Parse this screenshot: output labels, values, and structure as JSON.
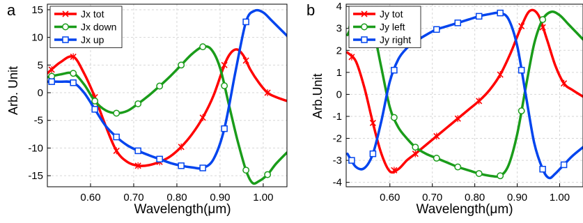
{
  "panels": [
    {
      "label": "a",
      "chart_data": {
        "type": "line",
        "xlabel": "Wavelength(μm)",
        "ylabel": "Arb. Unit",
        "xlim": [
          0.5,
          1.055
        ],
        "ylim": [
          -17,
          16
        ],
        "xticks": [
          0.6,
          0.7,
          0.8,
          0.9,
          1.0
        ],
        "xtick_labels": [
          "0.60",
          "0.70",
          "0.80",
          "0.90",
          "1.00"
        ],
        "yticks": [
          -15,
          -10,
          -5,
          0,
          5,
          10,
          15
        ],
        "ytick_labels": [
          "-15",
          "-10",
          "-5",
          "0",
          "5",
          "10",
          "15"
        ],
        "grid": true,
        "legend_position": "top-left",
        "series": [
          {
            "name": "Jx tot",
            "color": "#ff0000",
            "marker": "x",
            "x": [
              0.5,
              0.53,
              0.56,
              0.585,
              0.61,
              0.635,
              0.66,
              0.685,
              0.71,
              0.735,
              0.76,
              0.785,
              0.81,
              0.835,
              0.86,
              0.885,
              0.91,
              0.925,
              0.94,
              0.955,
              0.97,
              0.99,
              1.01,
              1.03,
              1.055
            ],
            "y": [
              3.5,
              5.5,
              6.5,
              3.5,
              -0.8,
              -6.0,
              -10.5,
              -12.5,
              -13.2,
              -13.1,
              -12.5,
              -11.5,
              -9.8,
              -7.5,
              -4.5,
              -0.5,
              5.0,
              7.2,
              7.8,
              6.6,
              4.2,
              1.8,
              0.0,
              -0.8,
              -1.5
            ],
            "marker_x": [
              0.51,
              0.56,
              0.61,
              0.66,
              0.71,
              0.76,
              0.81,
              0.86,
              0.91,
              0.96,
              1.01
            ]
          },
          {
            "name": "Jx down",
            "color": "#1a9c1a",
            "marker": "o",
            "x": [
              0.5,
              0.53,
              0.56,
              0.585,
              0.61,
              0.635,
              0.66,
              0.685,
              0.71,
              0.735,
              0.76,
              0.785,
              0.81,
              0.835,
              0.86,
              0.88,
              0.9,
              0.92,
              0.94,
              0.96,
              0.975,
              0.99,
              1.01,
              1.03,
              1.055
            ],
            "y": [
              2.8,
              3.3,
              3.5,
              1.5,
              -1.5,
              -3.2,
              -3.7,
              -3.3,
              -2.0,
              -0.5,
              1.2,
              3.0,
              5.0,
              7.0,
              8.3,
              7.8,
              4.5,
              -2.0,
              -8.5,
              -14.0,
              -16.3,
              -16.0,
              -14.8,
              -12.8,
              -10.8
            ],
            "marker_x": [
              0.51,
              0.56,
              0.61,
              0.66,
              0.71,
              0.76,
              0.81,
              0.86,
              0.91,
              0.96,
              1.01
            ]
          },
          {
            "name": "Jx up",
            "color": "#0044ee",
            "marker": "s",
            "x": [
              0.5,
              0.53,
              0.56,
              0.585,
              0.61,
              0.635,
              0.66,
              0.685,
              0.71,
              0.735,
              0.76,
              0.785,
              0.81,
              0.835,
              0.86,
              0.885,
              0.91,
              0.935,
              0.96,
              0.98,
              1.0,
              1.02,
              1.055
            ],
            "y": [
              2.0,
              2.0,
              1.8,
              0.0,
              -3.0,
              -6.0,
              -8.0,
              -9.5,
              -10.5,
              -11.3,
              -12.0,
              -12.7,
              -13.2,
              -13.5,
              -13.6,
              -12.0,
              -6.5,
              3.5,
              12.8,
              14.8,
              14.5,
              13.0,
              10.3
            ],
            "marker_x": [
              0.51,
              0.56,
              0.61,
              0.66,
              0.71,
              0.76,
              0.81,
              0.86,
              0.91,
              0.96
            ]
          }
        ]
      }
    },
    {
      "label": "b",
      "chart_data": {
        "type": "line",
        "xlabel": "Wavelength(μm)",
        "ylabel": "Arb.Unit",
        "xlim": [
          0.497,
          1.055
        ],
        "ylim": [
          -4.2,
          4.1
        ],
        "xticks": [
          0.6,
          0.7,
          0.8,
          0.9,
          1.0
        ],
        "xtick_labels": [
          "0.60",
          "0.70",
          "0.80",
          "0.90",
          "1.00"
        ],
        "yticks": [
          -4,
          -3,
          -2,
          -1,
          0,
          1,
          2,
          3,
          4
        ],
        "ytick_labels": [
          "-4",
          "-3",
          "-2",
          "-1",
          "0",
          "1",
          "2",
          "3",
          "4"
        ],
        "grid": true,
        "legend_position": "top-left",
        "series": [
          {
            "name": "Jy tot",
            "color": "#ff0000",
            "marker": "x",
            "x": [
              0.5,
              0.52,
              0.54,
              0.56,
              0.58,
              0.6,
              0.62,
              0.64,
              0.66,
              0.685,
              0.71,
              0.735,
              0.76,
              0.785,
              0.81,
              0.835,
              0.86,
              0.885,
              0.91,
              0.93,
              0.95,
              0.97,
              0.99,
              1.01,
              1.03,
              1.055
            ],
            "y": [
              1.9,
              1.5,
              0.3,
              -1.3,
              -2.7,
              -3.5,
              -3.4,
              -3.0,
              -2.7,
              -2.3,
              -1.9,
              -1.5,
              -1.1,
              -0.7,
              -0.3,
              0.2,
              0.9,
              1.9,
              3.1,
              3.8,
              3.6,
              2.5,
              1.3,
              0.5,
              0.2,
              -0.1
            ],
            "marker_x": [
              0.51,
              0.56,
              0.61,
              0.66,
              0.71,
              0.76,
              0.81,
              0.86,
              0.91,
              0.96,
              1.01
            ]
          },
          {
            "name": "Jy left",
            "color": "#1a9c1a",
            "marker": "o",
            "x": [
              0.5,
              0.52,
              0.54,
              0.56,
              0.58,
              0.6,
              0.62,
              0.64,
              0.66,
              0.685,
              0.71,
              0.735,
              0.76,
              0.785,
              0.81,
              0.835,
              0.86,
              0.88,
              0.9,
              0.92,
              0.94,
              0.96,
              0.98,
              1.0,
              1.02,
              1.04,
              1.055
            ],
            "y": [
              2.7,
              3.4,
              3.6,
              3.0,
              1.2,
              -0.6,
              -1.5,
              -2.0,
              -2.4,
              -2.7,
              -2.9,
              -3.1,
              -3.3,
              -3.45,
              -3.6,
              -3.7,
              -3.7,
              -3.2,
              -1.8,
              0.3,
              2.3,
              3.4,
              3.75,
              3.6,
              3.2,
              2.8,
              2.5
            ],
            "marker_x": [
              0.51,
              0.56,
              0.61,
              0.66,
              0.71,
              0.76,
              0.81,
              0.86,
              0.91,
              0.96
            ]
          },
          {
            "name": "Jy right",
            "color": "#0044ee",
            "marker": "s",
            "x": [
              0.5,
              0.52,
              0.54,
              0.56,
              0.58,
              0.6,
              0.62,
              0.64,
              0.66,
              0.685,
              0.71,
              0.735,
              0.76,
              0.785,
              0.81,
              0.835,
              0.86,
              0.88,
              0.9,
              0.92,
              0.94,
              0.96,
              0.975,
              0.99,
              1.01,
              1.03,
              1.055
            ],
            "y": [
              -2.7,
              -3.3,
              -3.35,
              -2.7,
              -1.2,
              0.6,
              1.6,
              2.1,
              2.4,
              2.7,
              2.95,
              3.1,
              3.25,
              3.4,
              3.55,
              3.65,
              3.7,
              3.4,
              2.2,
              0.0,
              -2.2,
              -3.4,
              -3.8,
              -3.6,
              -3.2,
              -2.8,
              -2.4
            ],
            "marker_x": [
              0.51,
              0.56,
              0.61,
              0.66,
              0.71,
              0.76,
              0.81,
              0.86,
              0.91,
              0.96,
              1.01
            ]
          }
        ]
      }
    }
  ]
}
